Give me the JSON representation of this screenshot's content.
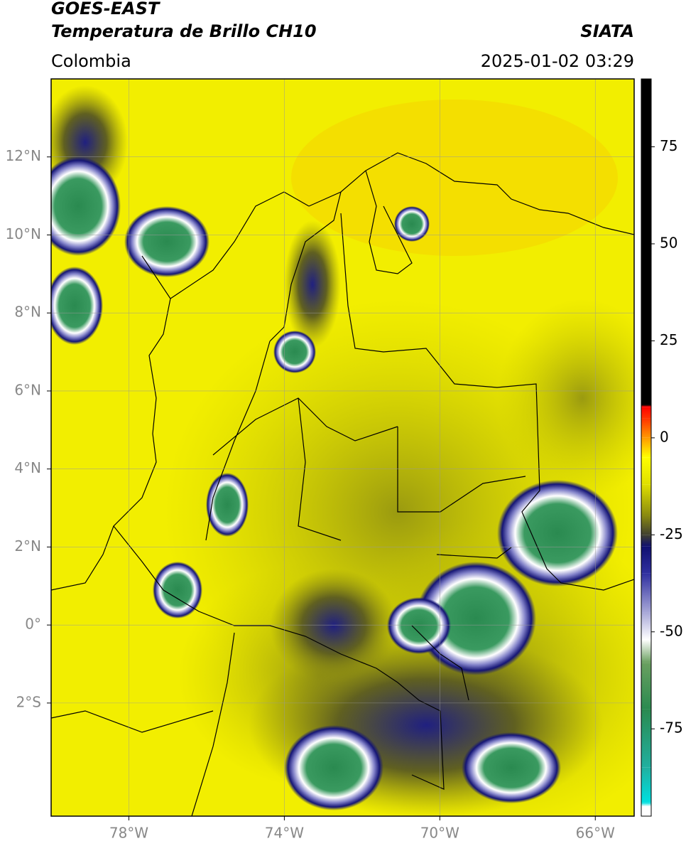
{
  "header": {
    "title": "GOES-EAST",
    "subtitle": "Temperatura de Brillo CH10",
    "source": "SIATA",
    "region": "Colombia",
    "datetime": "2025-01-02 03:29"
  },
  "map": {
    "xlim": [
      -80,
      -65
    ],
    "ylim": [
      -4.9,
      14
    ],
    "grid": true,
    "xticks": [
      {
        "value": -78,
        "label": "78°W"
      },
      {
        "value": -74,
        "label": "74°W"
      },
      {
        "value": -70,
        "label": "70°W"
      },
      {
        "value": -66,
        "label": "66°W"
      }
    ],
    "yticks": [
      {
        "value": 12,
        "label": "12°N"
      },
      {
        "value": 10,
        "label": "10°N"
      },
      {
        "value": 8,
        "label": "8°N"
      },
      {
        "value": 6,
        "label": "6°N"
      },
      {
        "value": 4,
        "label": "4°N"
      },
      {
        "value": 2,
        "label": "2°N"
      },
      {
        "value": 0,
        "label": "0°"
      },
      {
        "value": -2,
        "label": "2°S"
      }
    ]
  },
  "colorbar": {
    "lim": [
      -97.5,
      92.5
    ],
    "ticks": [
      75,
      50,
      25,
      0,
      -25,
      -50,
      -75
    ],
    "stops": [
      [
        -97.5,
        "#ffffff"
      ],
      [
        -95,
        "#ffffff"
      ],
      [
        -94,
        "#00e0e0"
      ],
      [
        -85,
        "#20b0a0"
      ],
      [
        -70,
        "#2a8a50"
      ],
      [
        -58,
        "#6aa060"
      ],
      [
        -52,
        "#ffffff"
      ],
      [
        -45,
        "#a8a8d8"
      ],
      [
        -35,
        "#3030a0"
      ],
      [
        -28,
        "#101070"
      ],
      [
        -25,
        "#404030"
      ],
      [
        -20,
        "#8a8a10"
      ],
      [
        -12,
        "#e0e000"
      ],
      [
        -5,
        "#ffff00"
      ],
      [
        0,
        "#ff9900"
      ],
      [
        5,
        "#ff3300"
      ],
      [
        8,
        "#ff0000"
      ],
      [
        8.5,
        "#000000"
      ],
      [
        92.5,
        "#000000"
      ]
    ]
  }
}
